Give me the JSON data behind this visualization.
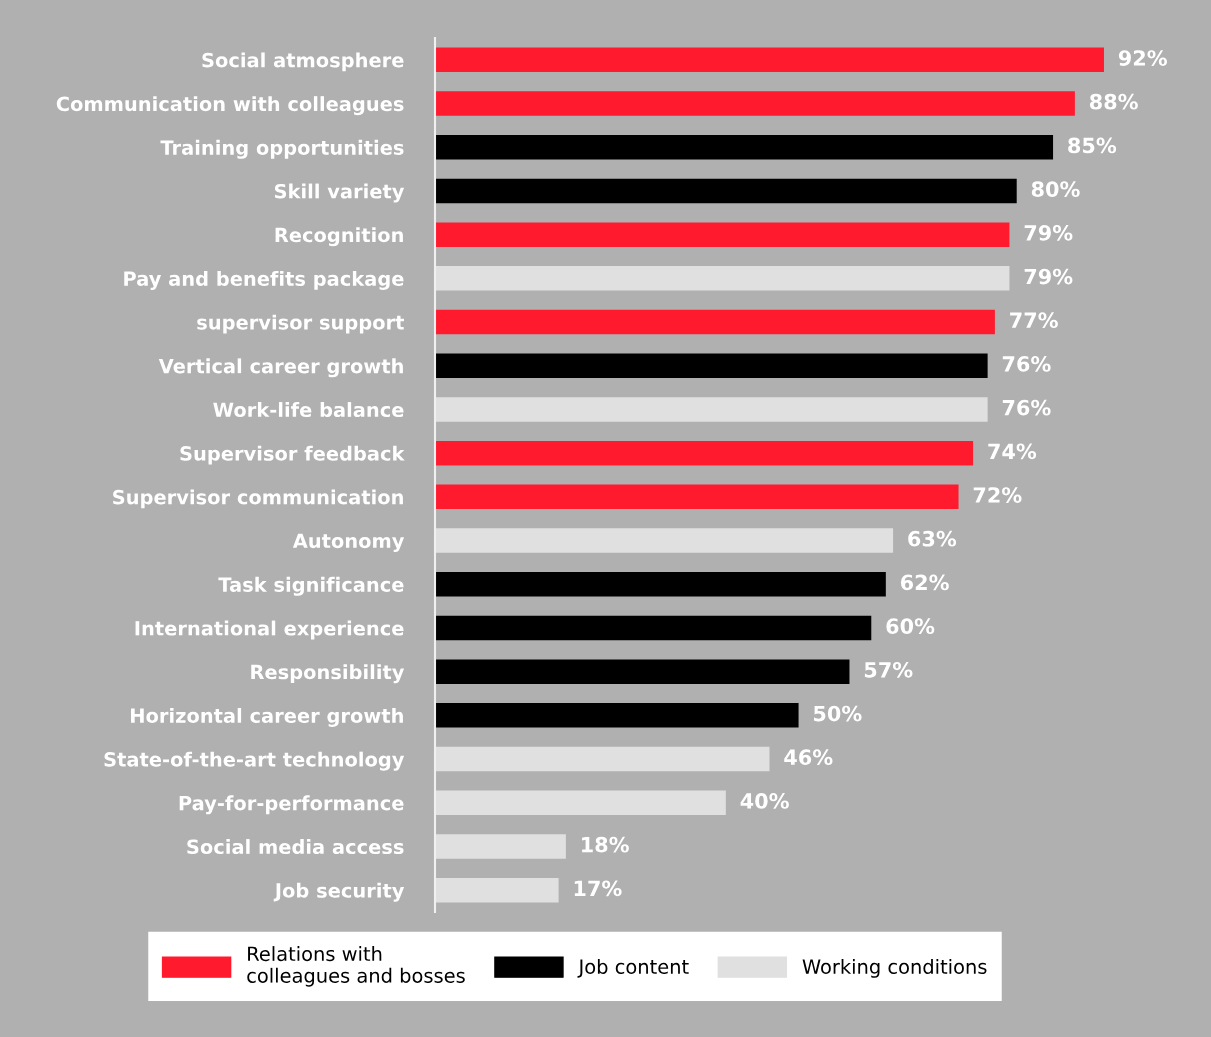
{
  "chart_data": {
    "type": "bar",
    "orientation": "horizontal",
    "legend": "bottom",
    "categories": [
      "Social atmosphere",
      "Communication with colleagues",
      "Training opportunities",
      "Skill variety",
      "Recognition",
      "Pay and benefits package",
      "supervisor support",
      "Vertical career growth",
      "Work-life balance",
      "Supervisor feedback",
      "Supervisor communication",
      "Autonomy",
      "Task significance",
      "International experience",
      "Responsibility",
      "Horizontal career growth",
      "State-of-the-art technology",
      "Pay-for-performance",
      "Social media access",
      "Job security"
    ],
    "series": [
      {
        "name": "Relations with\ncolleagues and bosses",
        "color": "#ff1a2e",
        "values": [
          92,
          88,
          null,
          null,
          79,
          null,
          77,
          null,
          null,
          74,
          72,
          null,
          null,
          null,
          null,
          null,
          null,
          null,
          null,
          null
        ],
        "value_labels": [
          "92%",
          "88%",
          null,
          null,
          "79%",
          null,
          "77%",
          null,
          null,
          "74%",
          "72%",
          null,
          null,
          null,
          null,
          null,
          null,
          null,
          null,
          null
        ]
      },
      {
        "name": "Job content",
        "color": "#000000",
        "values": [
          null,
          null,
          85,
          80,
          null,
          null,
          null,
          76,
          null,
          null,
          null,
          null,
          62,
          60,
          57,
          50,
          null,
          null,
          null,
          null
        ],
        "value_labels": [
          null,
          null,
          "85%",
          "80%",
          null,
          null,
          null,
          "76%",
          null,
          null,
          null,
          null,
          "62%",
          "60%",
          "57%",
          "50%",
          null,
          null,
          null,
          null
        ]
      },
      {
        "name": "Working conditions",
        "color": "#e0e0e0",
        "values": [
          null,
          null,
          null,
          null,
          null,
          79,
          null,
          null,
          76,
          null,
          null,
          63,
          null,
          null,
          null,
          null,
          46,
          40,
          18,
          17
        ],
        "value_labels": [
          null,
          null,
          null,
          null,
          null,
          "79%",
          null,
          null,
          "76%",
          null,
          null,
          "63%",
          null,
          null,
          null,
          null,
          "46%",
          "40%",
          "18%",
          "17%"
        ]
      }
    ]
  }
}
